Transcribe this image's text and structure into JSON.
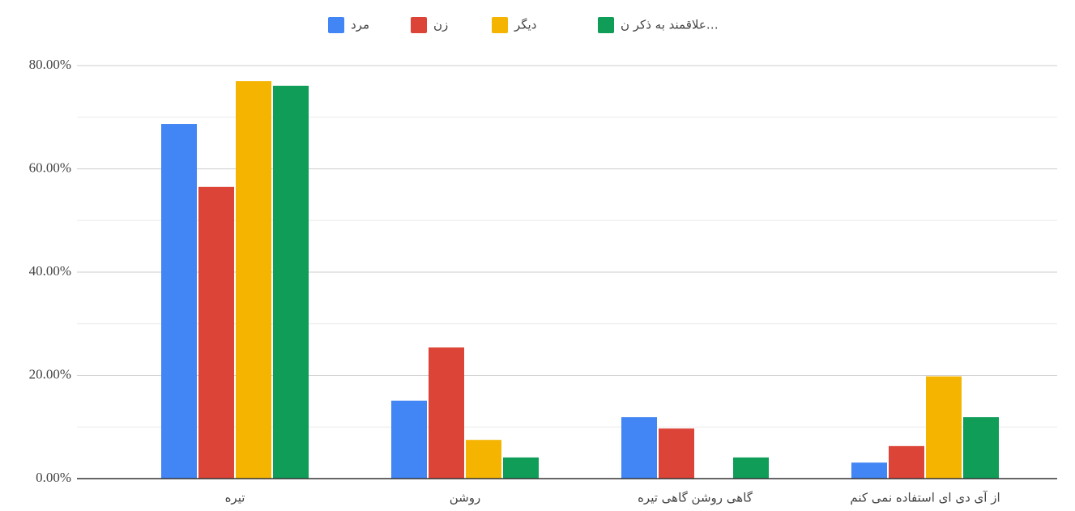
{
  "chart_data": {
    "type": "bar",
    "categories": [
      "تیره",
      "روشن",
      "گاهی روشن گاهی تیره",
      "از آی دی ای استفاده نمی کنم"
    ],
    "series": [
      {
        "name": "مرد",
        "color": "#4285f4",
        "values": [
          68.7,
          15.1,
          11.9,
          3.1
        ]
      },
      {
        "name": "زن",
        "color": "#db4437",
        "values": [
          56.5,
          25.4,
          9.7,
          6.3
        ]
      },
      {
        "name": "دیگر",
        "color": "#f4b400",
        "values": [
          77.0,
          7.5,
          0,
          19.8
        ]
      },
      {
        "name": "علاقمند به ذکر ن…",
        "color": "#0f9d58",
        "values": [
          76.1,
          4.1,
          4.1,
          11.9
        ]
      }
    ],
    "ylim": [
      0,
      80
    ],
    "yticks": [
      {
        "value": 0,
        "label": "0.00%"
      },
      {
        "value": 20,
        "label": "20.00%"
      },
      {
        "value": 40,
        "label": "40.00%"
      },
      {
        "value": 60,
        "label": "60.00%"
      },
      {
        "value": 80,
        "label": "80.00%"
      }
    ],
    "yminorticks": [
      10,
      30,
      50,
      70
    ],
    "grid": true,
    "legend": "top"
  }
}
